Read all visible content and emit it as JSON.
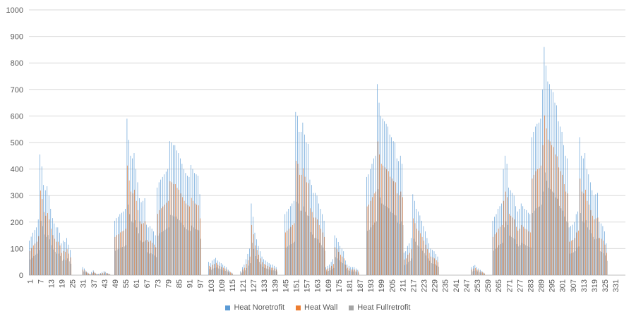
{
  "chart_data": {
    "type": "bar",
    "title": "",
    "xlabel": "",
    "ylabel": "",
    "ylim": [
      0,
      1000
    ],
    "yticks": [
      0,
      100,
      200,
      300,
      400,
      500,
      600,
      700,
      800,
      900,
      1000
    ],
    "grid": true,
    "legend_position": "bottom",
    "x_tick_labels": [
      "1",
      "7",
      "13",
      "19",
      "25",
      "31",
      "37",
      "43",
      "49",
      "55",
      "61",
      "67",
      "73",
      "79",
      "85",
      "91",
      "97",
      "103",
      "109",
      "115",
      "121",
      "127",
      "133",
      "139",
      "145",
      "151",
      "157",
      "163",
      "169",
      "175",
      "181",
      "187",
      "193",
      "199",
      "205",
      "211",
      "217",
      "223",
      "229",
      "235",
      "241",
      "247",
      "253",
      "259",
      "265",
      "271",
      "277",
      "283",
      "289",
      "295",
      "301",
      "307",
      "313",
      "319",
      "325",
      "331"
    ],
    "x_start": 1,
    "x_end": 336,
    "series": [
      {
        "name": "Heat Noretrofit",
        "color": "#5B9BD5"
      },
      {
        "name": "Heat Wall",
        "color": "#ED7D31"
      },
      {
        "name": "Heat Fullretrofit",
        "color": "#A5A5A5"
      }
    ],
    "noretrofit_segments": [
      {
        "start": 1,
        "values": [
          130,
          145,
          160,
          170,
          180,
          210,
          455,
          410,
          340,
          320,
          335,
          300,
          250,
          215,
          195,
          180,
          180,
          160,
          120,
          130,
          125,
          140,
          115,
          95
        ]
      },
      {
        "start": 31,
        "values": [
          30,
          25,
          15,
          10,
          5,
          12,
          18,
          10,
          5,
          5,
          8,
          12,
          15,
          12,
          8,
          5
        ]
      },
      {
        "start": 49,
        "values": [
          205,
          215,
          220,
          230,
          235,
          240,
          250,
          590,
          510,
          450,
          440,
          460,
          400,
          350,
          290,
          275,
          280,
          290,
          190,
          180,
          185,
          175,
          165,
          150,
          330,
          350,
          360,
          370,
          380,
          390,
          400,
          505,
          500,
          490,
          490,
          470,
          460,
          440,
          420,
          400,
          385,
          375,
          370,
          415,
          400,
          385,
          380,
          375,
          305
        ]
      },
      {
        "start": 102,
        "values": [
          50,
          45,
          55,
          60,
          65,
          55,
          50,
          45,
          40,
          35,
          30,
          20,
          15,
          10
        ]
      },
      {
        "start": 120,
        "values": [
          15,
          30,
          40,
          60,
          80,
          100,
          270,
          220,
          160,
          135,
          110,
          90,
          70,
          60,
          55,
          50,
          45,
          40,
          40,
          35,
          30
        ]
      },
      {
        "start": 145,
        "values": [
          230,
          240,
          250,
          260,
          270,
          280,
          615,
          600,
          540,
          540,
          575,
          530,
          500,
          495,
          360,
          340,
          310,
          310,
          300,
          270,
          250,
          230,
          205
        ]
      },
      {
        "start": 168,
        "values": [
          30,
          35,
          40,
          50,
          60,
          150,
          140,
          125,
          110,
          100,
          90,
          55,
          40,
          35,
          30,
          30,
          30,
          25,
          20
        ]
      },
      {
        "start": 191,
        "values": [
          370,
          380,
          400,
          420,
          440,
          450,
          720,
          650,
          600,
          590,
          580,
          570,
          560,
          530,
          520,
          505,
          500,
          440,
          430,
          450,
          420
        ]
      },
      {
        "start": 212,
        "values": [
          85,
          90,
          110,
          120,
          140,
          305,
          280,
          250,
          240,
          225,
          205,
          185,
          165,
          140,
          120,
          100,
          95,
          90,
          80,
          70
        ]
      },
      {
        "start": 250,
        "values": [
          30,
          35,
          38,
          30,
          25,
          20,
          15,
          10
        ]
      },
      {
        "start": 262,
        "values": [
          205,
          220,
          230,
          250,
          260,
          270,
          400,
          450,
          420,
          330,
          320,
          310,
          300,
          260,
          240,
          250,
          270,
          260,
          250,
          245,
          235,
          230
        ]
      },
      {
        "start": 284,
        "values": [
          520,
          540,
          560,
          570,
          575,
          590,
          700,
          860,
          790,
          730,
          720,
          700,
          690,
          650,
          640,
          580,
          560,
          540,
          490,
          450,
          440
        ]
      },
      {
        "start": 305,
        "values": [
          180,
          185,
          190,
          200,
          230,
          240,
          520,
          450,
          440,
          460,
          400,
          380,
          350,
          320,
          300,
          305,
          310,
          200,
          195,
          185,
          165,
          120
        ]
      }
    ]
  },
  "legend": {
    "items": [
      "Heat Noretrofit",
      "Heat Wall",
      "Heat Fullretrofit"
    ]
  }
}
